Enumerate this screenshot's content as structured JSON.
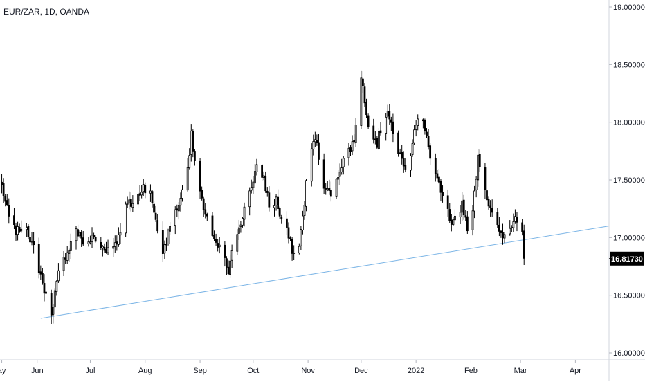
{
  "chart_data": {
    "type": "candlestick",
    "title": "EUR/ZAR, 1D, OANDA",
    "y_ticks": [
      "19.00000",
      "18.50000",
      "18.00000",
      "17.50000",
      "17.00000",
      "16.50000",
      "16.00000"
    ],
    "y_tick_values": [
      19.0,
      18.5,
      18.0,
      17.5,
      17.0,
      16.5,
      16.0
    ],
    "ylim": [
      15.94,
      19.06
    ],
    "x_labels": [
      {
        "label": "ay",
        "day": 0
      },
      {
        "label": "Jun",
        "day": 20
      },
      {
        "label": "Jul",
        "day": 50
      },
      {
        "label": "Aug",
        "day": 81
      },
      {
        "label": "Sep",
        "day": 112
      },
      {
        "label": "Oct",
        "day": 142
      },
      {
        "label": "Nov",
        "day": 173
      },
      {
        "label": "Dec",
        "day": 203
      },
      {
        "label": "2022",
        "day": 234
      },
      {
        "label": "Feb",
        "day": 265
      },
      {
        "label": "Mar",
        "day": 293
      },
      {
        "label": "Apr",
        "day": 324
      }
    ],
    "xlim": [
      -1,
      343
    ],
    "last_price": "16.81730",
    "last_value": 16.8173,
    "trendline": {
      "from": {
        "day": 22,
        "price": 16.3
      },
      "to": {
        "day": 343,
        "price": 17.1
      }
    },
    "waypoints": [
      [
        0,
        17.45
      ],
      [
        5,
        17.1
      ],
      [
        9,
        17.05
      ],
      [
        13,
        17.15
      ],
      [
        17,
        16.95
      ],
      [
        20,
        16.8
      ],
      [
        25,
        16.48
      ],
      [
        28,
        16.36
      ],
      [
        32,
        16.68
      ],
      [
        36,
        16.85
      ],
      [
        42,
        17.05
      ],
      [
        47,
        16.95
      ],
      [
        52,
        17.0
      ],
      [
        56,
        16.92
      ],
      [
        61,
        16.9
      ],
      [
        66,
        17.0
      ],
      [
        70,
        17.28
      ],
      [
        75,
        17.3
      ],
      [
        80,
        17.45
      ],
      [
        84,
        17.38
      ],
      [
        88,
        17.08
      ],
      [
        91,
        16.88
      ],
      [
        95,
        17.08
      ],
      [
        100,
        17.3
      ],
      [
        104,
        17.48
      ],
      [
        107,
        17.88
      ],
      [
        110,
        17.55
      ],
      [
        113,
        17.3
      ],
      [
        117,
        17.15
      ],
      [
        120,
        16.95
      ],
      [
        124,
        16.88
      ],
      [
        128,
        16.7
      ],
      [
        132,
        17.0
      ],
      [
        136,
        17.2
      ],
      [
        140,
        17.4
      ],
      [
        144,
        17.62
      ],
      [
        148,
        17.52
      ],
      [
        151,
        17.28
      ],
      [
        155,
        17.32
      ],
      [
        158,
        17.15
      ],
      [
        161,
        17.05
      ],
      [
        164,
        16.9
      ],
      [
        167,
        16.78
      ],
      [
        170,
        17.18
      ],
      [
        173,
        17.6
      ],
      [
        177,
        17.88
      ],
      [
        180,
        17.6
      ],
      [
        183,
        17.4
      ],
      [
        186,
        17.4
      ],
      [
        190,
        17.55
      ],
      [
        194,
        17.72
      ],
      [
        198,
        17.8
      ],
      [
        201,
        18.0
      ],
      [
        203,
        18.42
      ],
      [
        206,
        18.05
      ],
      [
        209,
        17.92
      ],
      [
        212,
        17.82
      ],
      [
        215,
        17.98
      ],
      [
        218,
        18.1
      ],
      [
        221,
        17.88
      ],
      [
        224,
        17.75
      ],
      [
        227,
        17.62
      ],
      [
        230,
        17.65
      ],
      [
        233,
        17.95
      ],
      [
        236,
        18.1
      ],
      [
        239,
        17.92
      ],
      [
        242,
        17.72
      ],
      [
        245,
        17.55
      ],
      [
        248,
        17.38
      ],
      [
        251,
        17.28
      ],
      [
        254,
        17.08
      ],
      [
        257,
        17.18
      ],
      [
        260,
        17.3
      ],
      [
        263,
        17.1
      ],
      [
        266,
        17.2
      ],
      [
        269,
        17.72
      ],
      [
        272,
        17.5
      ],
      [
        275,
        17.28
      ],
      [
        278,
        17.15
      ],
      [
        281,
        17.05
      ],
      [
        284,
        17.02
      ],
      [
        287,
        17.1
      ],
      [
        290,
        17.2
      ],
      [
        292,
        17.1
      ],
      [
        293,
        17.2
      ],
      [
        294,
        17.05
      ],
      [
        295,
        16.82
      ]
    ],
    "colors": {
      "up": "#ffffff",
      "down": "#000000",
      "wick": "#000000",
      "trend": "#7cb5e6",
      "grid": "#e0e3eb",
      "axis_text": "#131722",
      "price_tag_bg": "#000000",
      "price_tag_text": "#ffffff"
    }
  }
}
